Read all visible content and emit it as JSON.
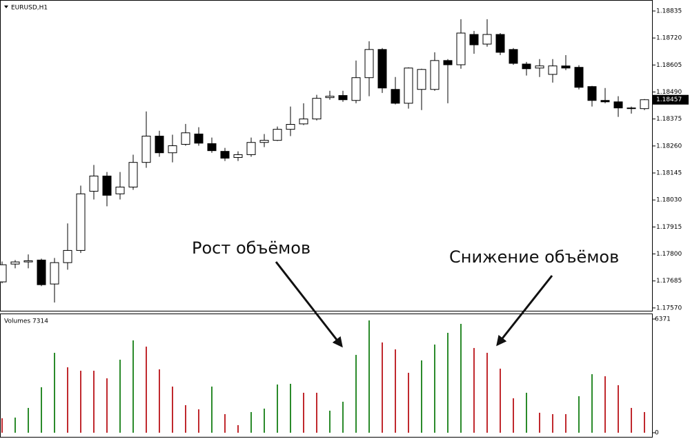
{
  "chart_data": [
    {
      "type": "candlestick",
      "title": "EURUSD,H1",
      "annotations": [
        "Рост объёмов",
        "Снижение объёмов"
      ],
      "categories": [
        null,
        null,
        null,
        null,
        null,
        null,
        null,
        null,
        null,
        null,
        null,
        null,
        null,
        null,
        null,
        null,
        null,
        null,
        null,
        null,
        null,
        null,
        null,
        null,
        null,
        null,
        null,
        null,
        null,
        null,
        null,
        null,
        null,
        null,
        null,
        null,
        null,
        null,
        null,
        null,
        null,
        null,
        null,
        null,
        null,
        null,
        null,
        null,
        null,
        null
      ],
      "open": [
        1.17681,
        1.17757,
        1.17766,
        1.17774,
        1.17672,
        1.17763,
        1.17815,
        1.18067,
        1.18132,
        1.18056,
        1.18085,
        1.1819,
        1.18302,
        1.18231,
        1.18267,
        1.18311,
        1.1827,
        1.18237,
        1.18211,
        1.18223,
        1.18275,
        1.18284,
        1.18331,
        1.18354,
        1.18375,
        1.18466,
        1.18475,
        1.18454,
        1.18551,
        1.18671,
        1.18501,
        1.18442,
        1.18501,
        1.18501,
        1.18624,
        1.18606,
        1.18735,
        1.18694,
        1.18735,
        1.18671,
        1.18609,
        1.18592,
        1.18565,
        1.18601,
        1.18595,
        1.18513,
        1.18454,
        1.18448,
        1.18419,
        1.18419
      ],
      "high": [
        1.17768,
        1.17774,
        1.17798,
        1.1778,
        1.17783,
        1.1793,
        1.18091,
        1.18179,
        1.18149,
        1.18149,
        1.18223,
        1.18407,
        1.18325,
        1.18308,
        1.18354,
        1.1834,
        1.18296,
        1.18252,
        1.18237,
        1.18296,
        1.18311,
        1.18343,
        1.18428,
        1.18442,
        1.18478,
        1.18495,
        1.18495,
        1.18624,
        1.18706,
        1.18677,
        1.18554,
        1.18595,
        1.18589,
        1.18659,
        1.1863,
        1.188,
        1.1875,
        1.188,
        1.18741,
        1.18677,
        1.18618,
        1.1863,
        1.1863,
        1.18647,
        1.18604,
        1.18516,
        1.18507,
        1.18472,
        1.18428,
        1.1846
      ],
      "low": [
        1.17675,
        1.17739,
        1.17739,
        1.17663,
        1.17593,
        1.17733,
        1.17804,
        1.18032,
        1.18003,
        1.18032,
        1.18073,
        1.18167,
        1.18214,
        1.1819,
        1.18261,
        1.18261,
        1.18231,
        1.18196,
        1.18196,
        1.18214,
        1.18255,
        1.18281,
        1.18302,
        1.18349,
        1.18369,
        1.18457,
        1.18448,
        1.18442,
        1.18472,
        1.18486,
        1.18437,
        1.18419,
        1.18413,
        1.18495,
        1.18442,
        1.18589,
        1.18653,
        1.18683,
        1.18647,
        1.18606,
        1.1856,
        1.18554,
        1.1853,
        1.18583,
        1.18501,
        1.18428,
        1.18442,
        1.18384,
        1.18398,
        1.18413
      ],
      "close": [
        1.17754,
        1.17766,
        1.17771,
        1.17669,
        1.17763,
        1.17815,
        1.18056,
        1.18132,
        1.1805,
        1.18085,
        1.1819,
        1.18302,
        1.18231,
        1.18261,
        1.18316,
        1.18272,
        1.1824,
        1.18208,
        1.18223,
        1.18275,
        1.18284,
        1.18331,
        1.18352,
        1.18375,
        1.18463,
        1.18472,
        1.18457,
        1.18551,
        1.18671,
        1.18507,
        1.18442,
        1.18592,
        1.18586,
        1.18624,
        1.18606,
        1.18741,
        1.18691,
        1.18735,
        1.18659,
        1.18612,
        1.18589,
        1.18601,
        1.18601,
        1.18592,
        1.1851,
        1.18454,
        1.18448,
        1.18422,
        1.18422,
        1.18457
      ],
      "ylim": [
        1.17555,
        1.18876
      ],
      "yticks": [
        1.18835,
        {
          "value": 1.1872,
          "label": "1.18720"
        },
        1.18605,
        {
          "value": 1.1849,
          "label": "1.18490"
        },
        1.18375,
        {
          "value": 1.1826,
          "label": "1.18260"
        },
        1.18145,
        {
          "value": 1.1803,
          "label": "1.18030"
        },
        1.17915,
        {
          "value": 1.178,
          "label": "1.17800"
        },
        1.17685,
        {
          "value": 1.1757,
          "label": "1.17570"
        }
      ],
      "up_color": "#ffffff",
      "down_color": "#000000"
    },
    {
      "type": "bar",
      "title": "Volumes 7314",
      "categories": [
        null,
        null,
        null,
        null,
        null,
        null,
        null,
        null,
        null,
        null,
        null,
        null,
        null,
        null,
        null,
        null,
        null,
        null,
        null,
        null,
        null,
        null,
        null,
        null,
        null,
        null,
        null,
        null,
        null,
        null,
        null,
        null,
        null,
        null,
        null,
        null,
        null,
        null,
        null,
        null,
        null,
        null,
        null,
        null,
        null,
        null,
        null,
        null,
        null,
        null
      ],
      "values": [
        811,
        849,
        1390,
        2548,
        4478,
        3667,
        3474,
        3474,
        3049,
        4092,
        5172,
        4825,
        3551,
        2586,
        1544,
        1312,
        2586,
        1042,
        425,
        1158,
        1351,
        2702,
        2741,
        2239,
        2239,
        1235,
        1737,
        4362,
        6292,
        5057,
        4671,
        3358,
        4053,
        4941,
        5597,
        6099,
        4748,
        4478,
        3590,
        1930,
        2239,
        1119,
        1042,
        1042,
        2046,
        3281,
        3165,
        2663,
        1390,
        1158
      ],
      "colors": [
        "#c0282d",
        "#2a8a2a",
        "#2a8a2a",
        "#2a8a2a",
        "#2a8a2a",
        "#c0282d",
        "#c0282d",
        "#c0282d",
        "#c0282d",
        "#2a8a2a",
        "#2a8a2a",
        "#c0282d",
        "#c0282d",
        "#c0282d",
        "#c0282d",
        "#c0282d",
        "#2a8a2a",
        "#c0282d",
        "#c0282d",
        "#2a8a2a",
        "#2a8a2a",
        "#2a8a2a",
        "#2a8a2a",
        "#c0282d",
        "#c0282d",
        "#2a8a2a",
        "#2a8a2a",
        "#2a8a2a",
        "#2a8a2a",
        "#c0282d",
        "#c0282d",
        "#c0282d",
        "#2a8a2a",
        "#2a8a2a",
        "#2a8a2a",
        "#2a8a2a",
        "#c0282d",
        "#c0282d",
        "#c0282d",
        "#c0282d",
        "#2a8a2a",
        "#c0282d",
        "#c0282d",
        "#c0282d",
        "#2a8a2a",
        "#2a8a2a",
        "#c0282d",
        "#c0282d",
        "#c0282d",
        "#c0282d"
      ],
      "ylim": [
        0,
        6371
      ],
      "yticks": [
        0,
        6371
      ]
    }
  ]
}
